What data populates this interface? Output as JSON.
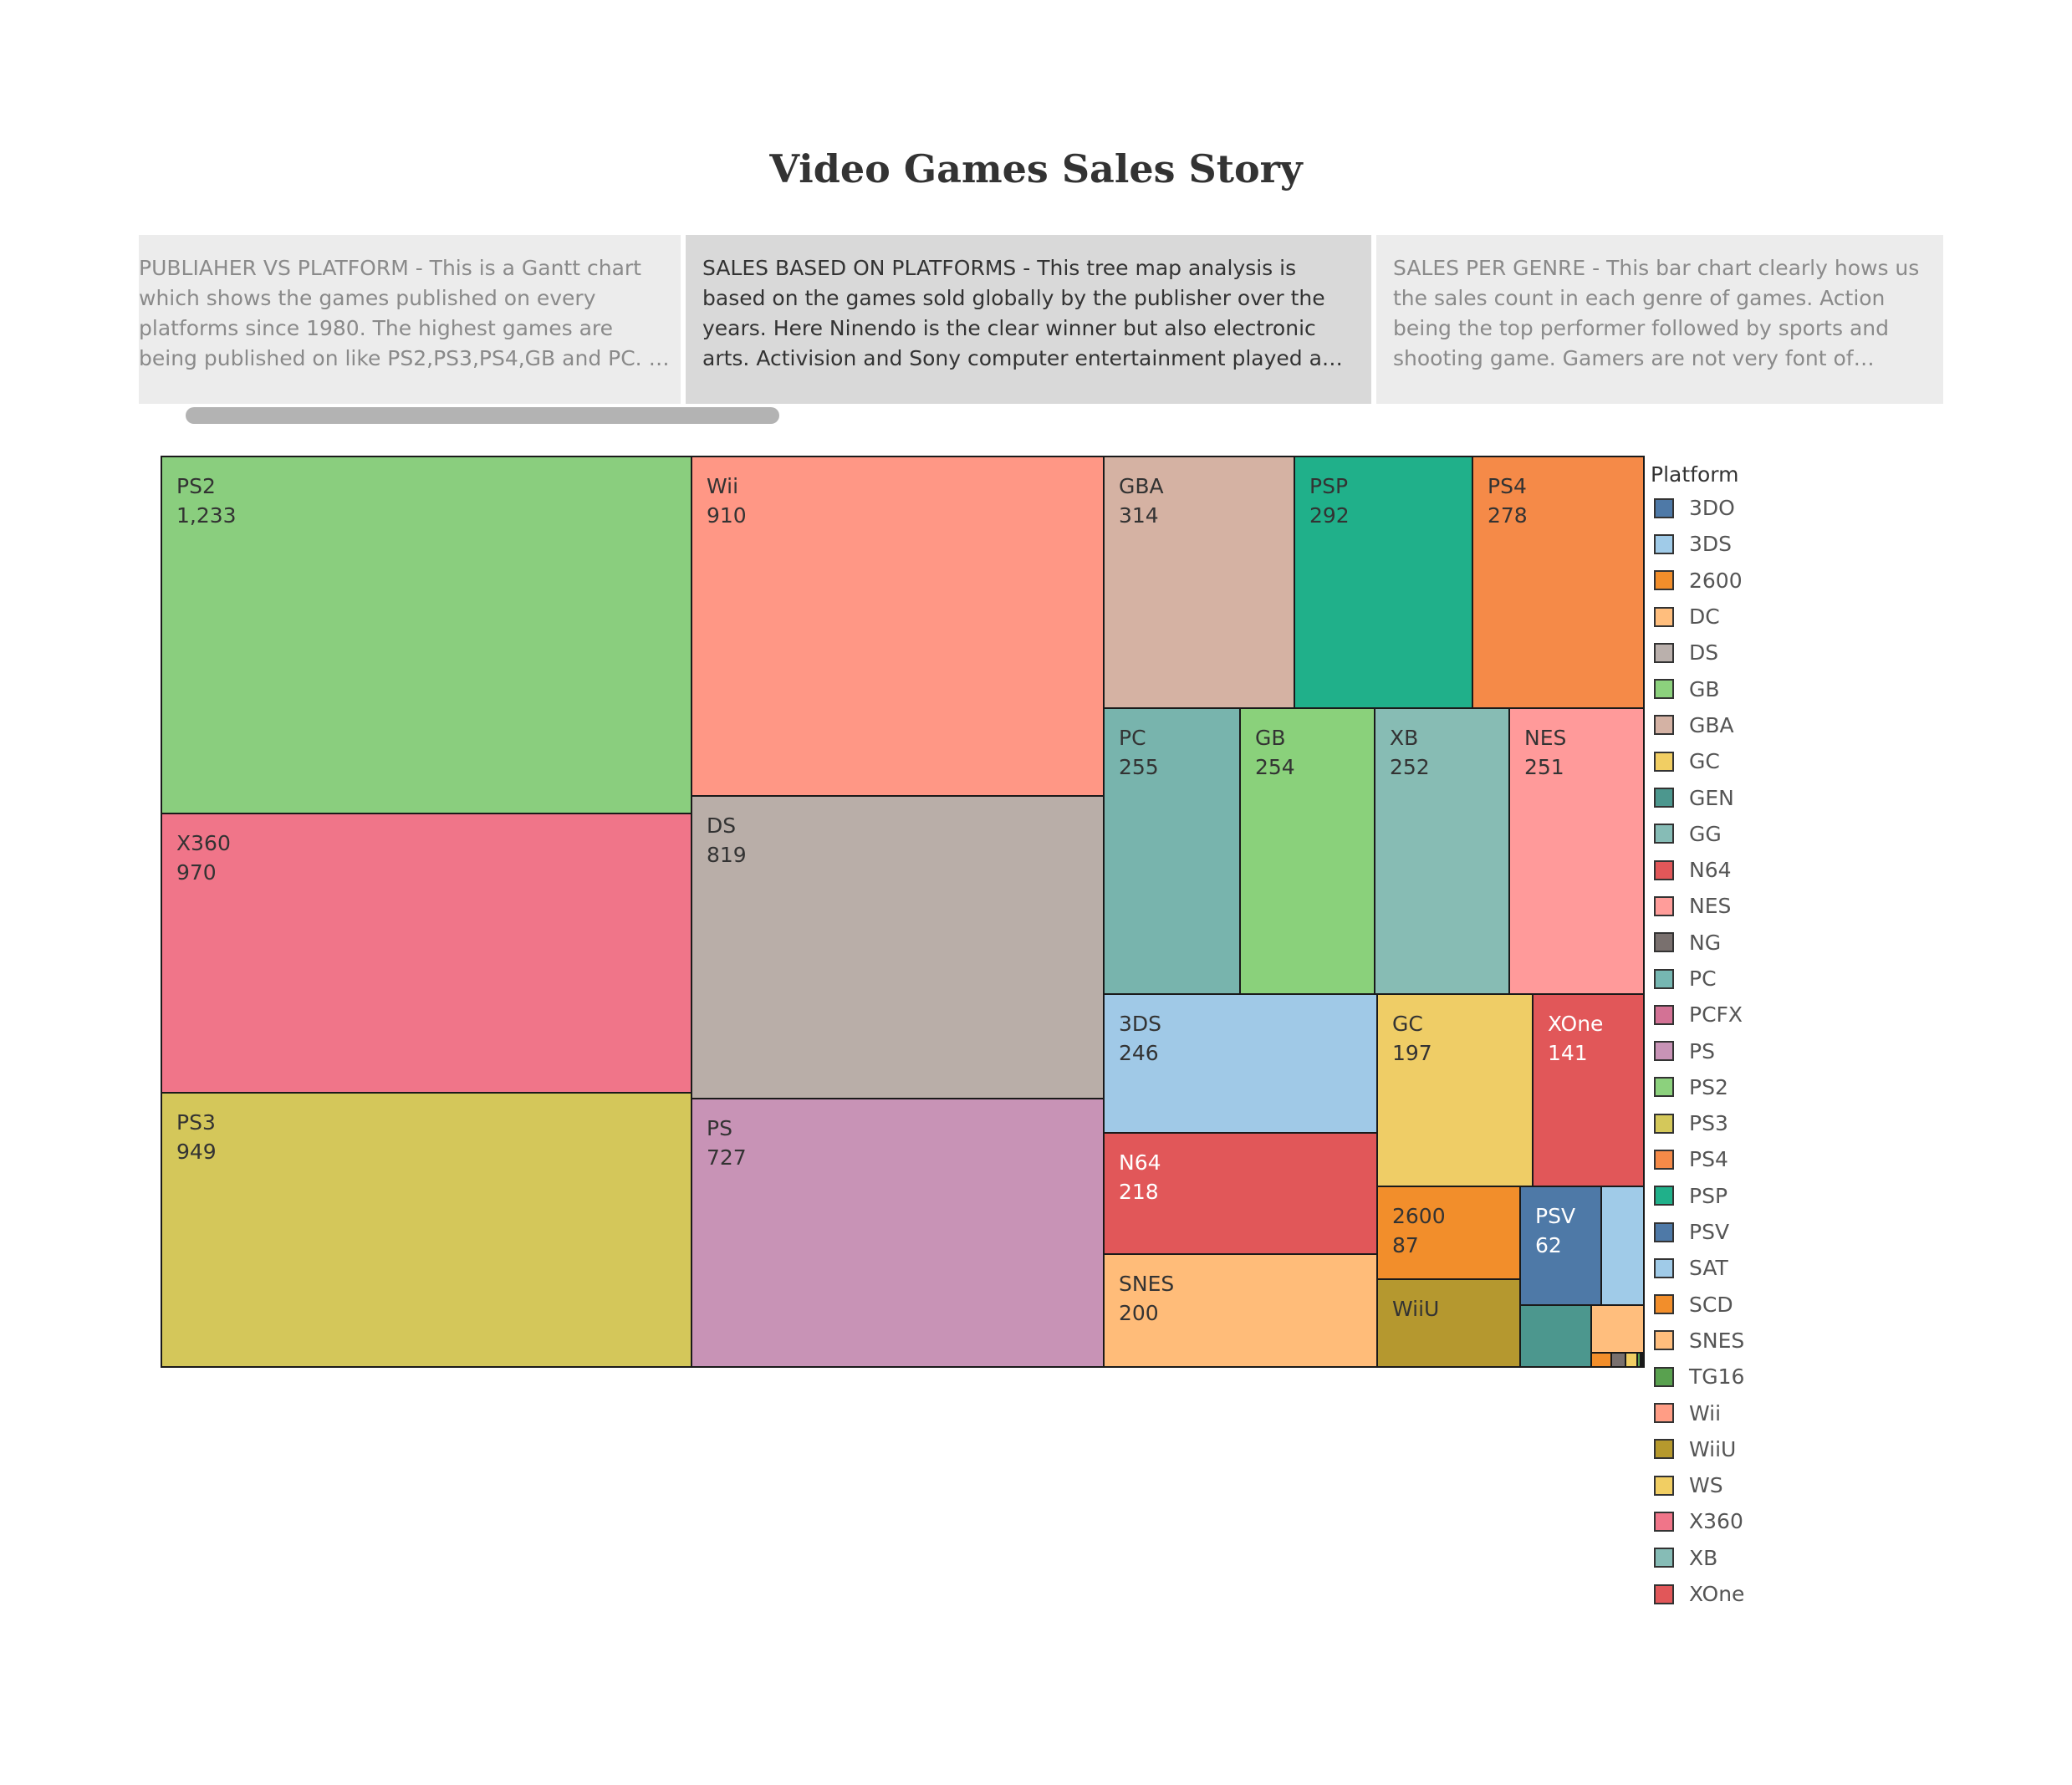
{
  "story": {
    "title": "Video Games Sales Story",
    "captions": [
      "PUBLIAHER VS PLATFORM - This is a Gantt chart which shows the games published on every platforms since 1980. The highest  games are being published on like PS2,PS3,PS4,GB and PC. It show..",
      "SALES BASED ON PLATFORMS - This tree map analysis is based on the games sold globally by the publisher over the years. Here Ninendo is the clear winner but also electronic  arts. Activision and Sony computer entertainment played a vital role in the ga..",
      "SALES PER GENRE - This bar chart clearly hows us the sales count in each genre of games. Action being the top  performer followed by sports and shooting game. Gamers are not very font of  strategical games, that i.."
    ],
    "active_caption": 1
  },
  "chart_data": {
    "type": "treemap",
    "title": "",
    "legend_title": "Platform",
    "legend_placement": "right",
    "items": [
      {
        "platform": "PS2",
        "value": 1233,
        "color": "#8ace7e",
        "label": true,
        "label_color": "#333333"
      },
      {
        "platform": "X360",
        "value": 970,
        "color": "#f07589",
        "label": true,
        "label_color": "#333333"
      },
      {
        "platform": "PS3",
        "value": 949,
        "color": "#d4c75a",
        "label": true,
        "label_color": "#333333"
      },
      {
        "platform": "Wii",
        "value": 910,
        "color": "#ff9785",
        "label": true,
        "label_color": "#333333"
      },
      {
        "platform": "DS",
        "value": 819,
        "color": "#b9aea8",
        "label": true,
        "label_color": "#333333"
      },
      {
        "platform": "PS",
        "value": 727,
        "color": "#c893b6",
        "label": true,
        "label_color": "#333333"
      },
      {
        "platform": "GBA",
        "value": 314,
        "color": "#d5b2a3",
        "label": true,
        "label_color": "#333333"
      },
      {
        "platform": "PSP",
        "value": 292,
        "color": "#20b08a",
        "label": true,
        "label_color": "#333333"
      },
      {
        "platform": "PS4",
        "value": 278,
        "color": "#f58a48",
        "label": true,
        "label_color": "#333333"
      },
      {
        "platform": "PC",
        "value": 255,
        "color": "#78b4ad",
        "label": true,
        "label_color": "#333333"
      },
      {
        "platform": "GB",
        "value": 254,
        "color": "#8ad17b",
        "label": true,
        "label_color": "#333333"
      },
      {
        "platform": "XB",
        "value": 252,
        "color": "#87bcb4",
        "label": true,
        "label_color": "#333333"
      },
      {
        "platform": "NES",
        "value": 251,
        "color": "#ff9a9a",
        "label": true,
        "label_color": "#333333"
      },
      {
        "platform": "3DS",
        "value": 246,
        "color": "#a0c9e7",
        "label": true,
        "label_color": "#333333"
      },
      {
        "platform": "N64",
        "value": 218,
        "color": "#e15759",
        "label": true,
        "label_color": "#ffffff"
      },
      {
        "platform": "SNES",
        "value": 200,
        "color": "#ffbc79",
        "label": true,
        "label_color": "#333333"
      },
      {
        "platform": "GC",
        "value": 197,
        "color": "#efcd66",
        "label": true,
        "label_color": "#333333"
      },
      {
        "platform": "XOne",
        "value": 141,
        "color": "#e15759",
        "label": true,
        "label_color": "#ffffff"
      },
      {
        "platform": "2600",
        "value": 87,
        "color": "#f28e2b",
        "label": true,
        "label_color": "#333333"
      },
      {
        "platform": "PSV",
        "value": 62,
        "color": "#4e79a7",
        "label": true,
        "label_color": "#ffffff"
      },
      {
        "platform": "WiiU",
        "value": 82,
        "color": "#b5982f",
        "label": true,
        "label_color": "#333333",
        "show_value": false
      },
      {
        "platform": "SAT",
        "value": 34,
        "color": "#a0cbe8",
        "label": false
      },
      {
        "platform": "GEN",
        "value": 29,
        "color": "#4c978e",
        "label": false
      },
      {
        "platform": "DC",
        "value": 16,
        "color": "#ffbe7d",
        "label": false
      },
      {
        "platform": "SCD",
        "value": 2,
        "color": "#f28e2b",
        "label": false
      },
      {
        "platform": "NG",
        "value": 1.5,
        "color": "#79706e",
        "label": false
      },
      {
        "platform": "WS",
        "value": 1.4,
        "color": "#f1ce63",
        "label": false
      },
      {
        "platform": "TG16",
        "value": 0.2,
        "color": "#59a14f",
        "label": false
      },
      {
        "platform": "3DO",
        "value": 0.1,
        "color": "#4e79a7",
        "label": false
      },
      {
        "platform": "GG",
        "value": 0.04,
        "color": "#86bcb6",
        "label": false
      },
      {
        "platform": "PCFX",
        "value": 0.03,
        "color": "#d37295",
        "label": false
      }
    ],
    "legend": [
      {
        "label": "3DO",
        "color": "#4e79a7"
      },
      {
        "label": "3DS",
        "color": "#a0cbe8"
      },
      {
        "label": "2600",
        "color": "#f28e2b"
      },
      {
        "label": "DC",
        "color": "#ffbe7d"
      },
      {
        "label": "DS",
        "color": "#bab0ac"
      },
      {
        "label": "GB",
        "color": "#8cd17d"
      },
      {
        "label": "GBA",
        "color": "#d4b2a4"
      },
      {
        "label": "GC",
        "color": "#f1ce63"
      },
      {
        "label": "GEN",
        "color": "#4c978e"
      },
      {
        "label": "GG",
        "color": "#86bcb6"
      },
      {
        "label": "N64",
        "color": "#e15759"
      },
      {
        "label": "NES",
        "color": "#ff9d9a"
      },
      {
        "label": "NG",
        "color": "#79706e"
      },
      {
        "label": "PC",
        "color": "#76b7b2"
      },
      {
        "label": "PCFX",
        "color": "#d37295"
      },
      {
        "label": "PS",
        "color": "#c893b6"
      },
      {
        "label": "PS2",
        "color": "#8cd17d"
      },
      {
        "label": "PS3",
        "color": "#d4c85a"
      },
      {
        "label": "PS4",
        "color": "#f58a48"
      },
      {
        "label": "PSP",
        "color": "#20b08a"
      },
      {
        "label": "PSV",
        "color": "#4e79a7"
      },
      {
        "label": "SAT",
        "color": "#a0cbe8"
      },
      {
        "label": "SCD",
        "color": "#f28e2b"
      },
      {
        "label": "SNES",
        "color": "#ffbe7d"
      },
      {
        "label": "TG16",
        "color": "#59a14f"
      },
      {
        "label": "Wii",
        "color": "#ff9d85"
      },
      {
        "label": "WiiU",
        "color": "#b6992d"
      },
      {
        "label": "WS",
        "color": "#f1ce63"
      },
      {
        "label": "X360",
        "color": "#f07589"
      },
      {
        "label": "XB",
        "color": "#86bcb6"
      },
      {
        "label": "XOne",
        "color": "#e15759"
      }
    ]
  }
}
